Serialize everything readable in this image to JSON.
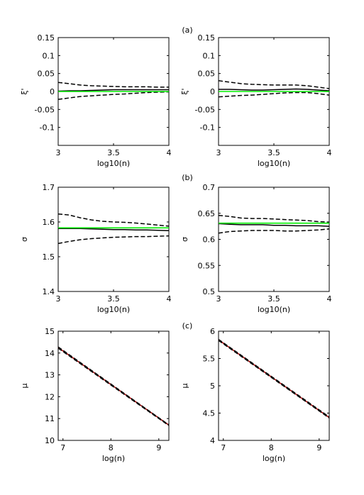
{
  "panel_labels": [
    "(a)",
    "(b)",
    "(c)"
  ],
  "colors": {
    "ci": "#000000",
    "estimate": "#000000",
    "true": "#00ee00",
    "fit": "#aa0000"
  },
  "chart_data": [
    {
      "type": "line",
      "label": "",
      "xlabel": "log10(n)",
      "ylabel": "ξ'",
      "xlim": [
        3,
        4
      ],
      "ylim": [
        -0.15,
        0.15
      ],
      "xticks": [
        3,
        3.5,
        4
      ],
      "xticklabels": [
        "3",
        "3.5",
        "4"
      ],
      "yticks": [
        -0.1,
        -0.05,
        0,
        0.05,
        0.1,
        0.15
      ],
      "yticklabels": [
        "-0.1",
        "-0.05",
        "0",
        "0.05",
        "0.1",
        "0.15"
      ],
      "x": [
        3.0,
        3.1,
        3.2,
        3.3,
        3.4,
        3.5,
        3.6,
        3.7,
        3.8,
        3.9,
        4.0
      ],
      "series": [
        {
          "style": "dashed",
          "color": "ci",
          "values": [
            0.025,
            0.022,
            0.018,
            0.016,
            0.015,
            0.014,
            0.013,
            0.013,
            0.013,
            0.012,
            0.012
          ]
        },
        {
          "style": "solid",
          "color": "estimate",
          "values": [
            0.001,
            0.002,
            0.002,
            0.003,
            0.004,
            0.005,
            0.005,
            0.005,
            0.005,
            0.005,
            0.005
          ]
        },
        {
          "style": "dashed",
          "color": "ci",
          "values": [
            -0.022,
            -0.018,
            -0.014,
            -0.012,
            -0.01,
            -0.008,
            -0.007,
            -0.005,
            -0.003,
            -0.002,
            -0.001
          ]
        },
        {
          "style": "solid",
          "color": "true",
          "values": [
            0,
            0,
            0,
            0,
            0,
            0,
            0,
            0,
            0,
            0,
            0
          ]
        }
      ]
    },
    {
      "type": "line",
      "label": "",
      "xlabel": "log10(n)",
      "ylabel": "ξ'",
      "xlim": [
        3,
        4
      ],
      "ylim": [
        -0.15,
        0.15
      ],
      "xticks": [
        3,
        3.5,
        4
      ],
      "xticklabels": [
        "3",
        "3.5",
        "4"
      ],
      "yticks": [
        -0.1,
        -0.05,
        0,
        0.05,
        0.1,
        0.15
      ],
      "yticklabels": [
        "-0.1",
        "-0.05",
        "0",
        "0.05",
        "0.1",
        "0.15"
      ],
      "x": [
        3.0,
        3.1,
        3.2,
        3.3,
        3.4,
        3.5,
        3.6,
        3.7,
        3.8,
        3.9,
        4.0
      ],
      "series": [
        {
          "style": "dashed",
          "color": "ci",
          "values": [
            0.03,
            0.026,
            0.022,
            0.02,
            0.019,
            0.018,
            0.018,
            0.018,
            0.016,
            0.012,
            0.008
          ]
        },
        {
          "style": "solid",
          "color": "estimate",
          "values": [
            0.006,
            0.006,
            0.005,
            0.004,
            0.004,
            0.005,
            0.006,
            0.007,
            0.006,
            0.004,
            0.002
          ]
        },
        {
          "style": "dashed",
          "color": "ci",
          "values": [
            -0.015,
            -0.013,
            -0.011,
            -0.01,
            -0.008,
            -0.006,
            -0.004,
            -0.003,
            -0.003,
            -0.006,
            -0.01
          ]
        },
        {
          "style": "solid",
          "color": "true",
          "values": [
            0,
            0,
            0,
            0,
            0,
            0,
            0,
            0,
            0,
            0,
            0
          ]
        }
      ]
    },
    {
      "type": "line",
      "label": "",
      "xlabel": "log10(n)",
      "ylabel": "σ",
      "xlim": [
        3,
        4
      ],
      "ylim": [
        1.4,
        1.7
      ],
      "xticks": [
        3,
        3.5,
        4
      ],
      "xticklabels": [
        "3",
        "3.5",
        "4"
      ],
      "yticks": [
        1.4,
        1.5,
        1.6,
        1.7
      ],
      "yticklabels": [
        "1.4",
        "1.5",
        "1.6",
        "1.7"
      ],
      "x": [
        3.0,
        3.1,
        3.2,
        3.3,
        3.4,
        3.5,
        3.6,
        3.7,
        3.8,
        3.9,
        4.0
      ],
      "series": [
        {
          "style": "dashed",
          "color": "ci",
          "values": [
            1.623,
            1.62,
            1.612,
            1.606,
            1.602,
            1.6,
            1.599,
            1.597,
            1.594,
            1.591,
            1.588
          ]
        },
        {
          "style": "solid",
          "color": "estimate",
          "values": [
            1.581,
            1.581,
            1.581,
            1.58,
            1.579,
            1.578,
            1.578,
            1.577,
            1.577,
            1.576,
            1.575
          ]
        },
        {
          "style": "dashed",
          "color": "ci",
          "values": [
            1.538,
            1.544,
            1.549,
            1.552,
            1.554,
            1.556,
            1.557,
            1.558,
            1.558,
            1.559,
            1.56
          ]
        },
        {
          "style": "solid",
          "color": "true",
          "values": [
            1.583,
            1.583,
            1.583,
            1.583,
            1.583,
            1.583,
            1.583,
            1.583,
            1.583,
            1.583,
            1.583
          ]
        }
      ]
    },
    {
      "type": "line",
      "label": "",
      "xlabel": "log10(n)",
      "ylabel": "σ",
      "xlim": [
        3,
        4
      ],
      "ylim": [
        0.5,
        0.7
      ],
      "xticks": [
        3,
        3.5,
        4
      ],
      "xticklabels": [
        "3",
        "3.5",
        "4"
      ],
      "yticks": [
        0.5,
        0.55,
        0.6,
        0.65,
        0.7
      ],
      "yticklabels": [
        "0.5",
        "0.55",
        "0.6",
        "0.65",
        "0.7"
      ],
      "x": [
        3.0,
        3.1,
        3.2,
        3.3,
        3.4,
        3.5,
        3.6,
        3.7,
        3.8,
        3.9,
        4.0
      ],
      "series": [
        {
          "style": "dashed",
          "color": "ci",
          "values": [
            0.646,
            0.644,
            0.641,
            0.64,
            0.64,
            0.639,
            0.638,
            0.637,
            0.636,
            0.634,
            0.633
          ]
        },
        {
          "style": "solid",
          "color": "estimate",
          "values": [
            0.63,
            0.629,
            0.628,
            0.628,
            0.628,
            0.627,
            0.627,
            0.626,
            0.626,
            0.626,
            0.625
          ]
        },
        {
          "style": "dashed",
          "color": "ci",
          "values": [
            0.612,
            0.615,
            0.616,
            0.617,
            0.617,
            0.617,
            0.616,
            0.616,
            0.617,
            0.618,
            0.62
          ]
        },
        {
          "style": "solid",
          "color": "true",
          "values": [
            0.631,
            0.631,
            0.631,
            0.631,
            0.631,
            0.631,
            0.631,
            0.631,
            0.631,
            0.631,
            0.631
          ]
        }
      ]
    },
    {
      "type": "line",
      "label": "",
      "xlabel": "log(n)",
      "ylabel": "μ",
      "xlim": [
        6.9,
        9.21
      ],
      "ylim": [
        10,
        15
      ],
      "xticks": [
        7,
        8,
        9
      ],
      "xticklabels": [
        "7",
        "8",
        "9"
      ],
      "yticks": [
        10,
        11,
        12,
        13,
        14,
        15
      ],
      "yticklabels": [
        "10",
        "11",
        "12",
        "13",
        "14",
        "15"
      ],
      "x": [
        6.9,
        9.21
      ],
      "series": [
        {
          "style": "solid",
          "color": "fit",
          "values": [
            14.25,
            10.7
          ]
        },
        {
          "style": "dashed",
          "color": "ci",
          "values": [
            14.28,
            10.71
          ]
        },
        {
          "style": "dashed",
          "color": "ci",
          "values": [
            14.22,
            10.68
          ]
        }
      ]
    },
    {
      "type": "line",
      "label": "",
      "xlabel": "log(n)",
      "ylabel": "μ",
      "xlim": [
        6.9,
        9.21
      ],
      "ylim": [
        4,
        6
      ],
      "xticks": [
        7,
        8,
        9
      ],
      "xticklabels": [
        "7",
        "8",
        "9"
      ],
      "yticks": [
        4,
        4.5,
        5,
        5.5,
        6
      ],
      "yticklabels": [
        "4",
        "4.5",
        "5",
        "5.5",
        "6"
      ],
      "x": [
        6.9,
        9.21
      ],
      "series": [
        {
          "style": "solid",
          "color": "fit",
          "values": [
            5.84,
            4.42
          ]
        },
        {
          "style": "dashed",
          "color": "ci",
          "values": [
            5.85,
            4.43
          ]
        },
        {
          "style": "dashed",
          "color": "ci",
          "values": [
            5.83,
            4.41
          ]
        }
      ]
    }
  ]
}
